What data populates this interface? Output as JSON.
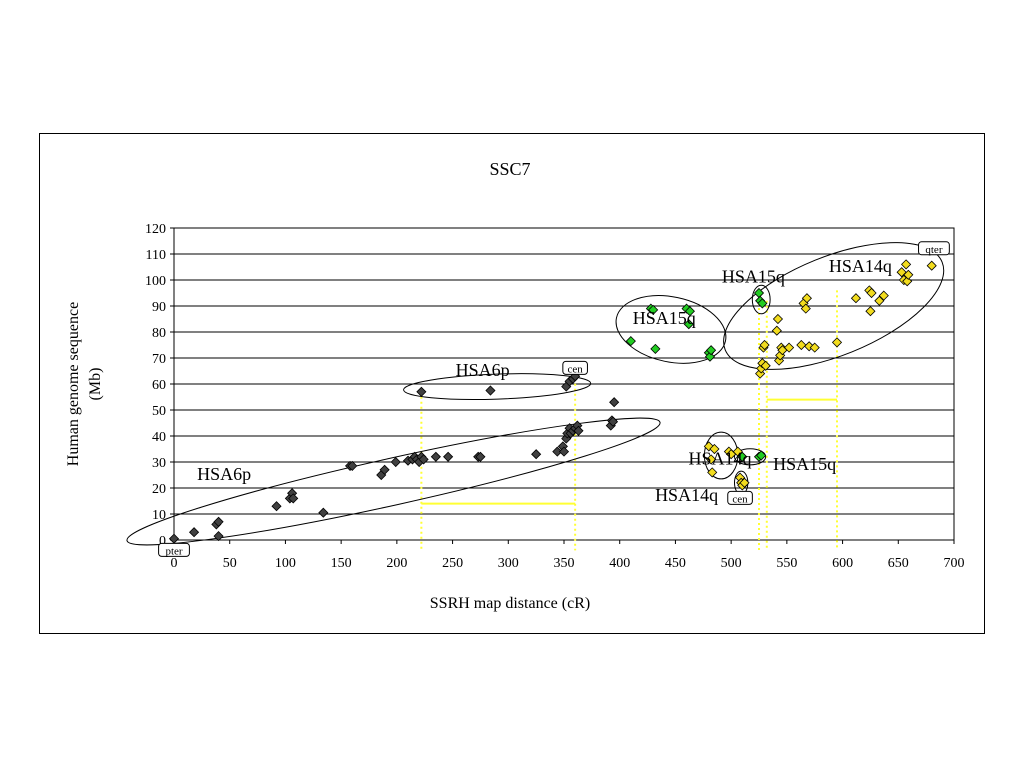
{
  "chart_data": {
    "type": "scatter",
    "title": "SSC7",
    "xlabel": "SSRH map distance (cR)",
    "ylabel": [
      "Human genome sequence",
      "(Mb)"
    ],
    "xlim": [
      0,
      700
    ],
    "ylim": [
      0,
      120
    ],
    "xticks": [
      0,
      50,
      100,
      150,
      200,
      250,
      300,
      350,
      400,
      450,
      500,
      550,
      600,
      650,
      700
    ],
    "yticks": [
      0,
      10,
      20,
      30,
      40,
      50,
      60,
      70,
      80,
      90,
      100,
      110,
      120
    ],
    "grid": "horizontal",
    "colors": {
      "dark": "#404040",
      "green": "#22cc22",
      "yellow": "#f2dc1e",
      "guide": "#ffff33"
    },
    "series": [
      {
        "color": "dark",
        "points": [
          [
            0,
            0.5
          ],
          [
            18,
            3
          ],
          [
            38,
            6
          ],
          [
            40,
            7
          ],
          [
            40,
            1.5
          ],
          [
            92,
            13
          ],
          [
            104,
            16
          ],
          [
            106,
            18
          ],
          [
            107,
            16
          ],
          [
            134,
            10.5
          ],
          [
            158,
            28.5
          ],
          [
            160,
            28.5
          ],
          [
            186,
            25
          ],
          [
            189,
            27
          ],
          [
            199,
            30
          ],
          [
            210,
            30.5
          ],
          [
            214,
            31
          ],
          [
            216,
            32
          ],
          [
            218,
            31
          ],
          [
            220,
            30
          ],
          [
            222,
            32
          ],
          [
            224,
            31
          ],
          [
            235,
            32
          ],
          [
            246,
            32
          ],
          [
            273,
            32
          ],
          [
            275,
            32
          ],
          [
            325,
            33
          ],
          [
            344,
            34
          ],
          [
            349,
            36
          ],
          [
            350,
            34
          ],
          [
            352,
            39
          ],
          [
            353,
            41
          ],
          [
            355,
            43
          ],
          [
            356,
            41
          ],
          [
            358,
            42
          ],
          [
            360,
            43
          ],
          [
            362,
            44
          ],
          [
            363,
            42
          ],
          [
            392,
            44
          ],
          [
            393,
            46
          ],
          [
            394,
            45.5
          ],
          [
            395,
            53
          ],
          [
            222,
            57
          ],
          [
            284,
            57.5
          ],
          [
            352,
            59
          ],
          [
            355,
            61
          ],
          [
            358,
            62
          ],
          [
            360,
            63
          ]
        ]
      },
      {
        "color": "green",
        "points": [
          [
            410,
            76.5
          ],
          [
            428,
            89
          ],
          [
            430,
            88.5
          ],
          [
            432,
            73.5
          ],
          [
            460,
            89
          ],
          [
            462,
            83
          ],
          [
            463,
            88
          ],
          [
            480,
            72
          ],
          [
            481,
            70.5
          ],
          [
            482,
            73
          ],
          [
            525,
            95
          ],
          [
            526,
            92
          ],
          [
            528,
            91
          ],
          [
            510,
            32
          ],
          [
            525,
            32
          ],
          [
            527,
            32.5
          ]
        ]
      },
      {
        "color": "yellow",
        "points": [
          [
            480,
            36
          ],
          [
            482,
            31
          ],
          [
            483,
            26
          ],
          [
            485,
            35
          ],
          [
            498,
            34
          ],
          [
            500,
            33
          ],
          [
            506,
            34
          ],
          [
            508,
            24
          ],
          [
            509,
            22
          ],
          [
            510,
            21
          ],
          [
            512,
            22
          ],
          [
            526,
            64
          ],
          [
            527,
            66
          ],
          [
            528,
            68
          ],
          [
            529,
            74
          ],
          [
            530,
            75
          ],
          [
            531,
            67
          ],
          [
            541,
            80.5
          ],
          [
            542,
            85
          ],
          [
            543,
            69
          ],
          [
            544,
            71
          ],
          [
            545,
            74
          ],
          [
            546,
            73
          ],
          [
            552,
            74
          ],
          [
            563,
            75
          ],
          [
            565,
            91
          ],
          [
            567,
            89
          ],
          [
            568,
            93
          ],
          [
            570,
            74.5
          ],
          [
            575,
            74
          ],
          [
            595,
            76
          ],
          [
            612,
            93
          ],
          [
            624,
            96
          ],
          [
            625,
            88
          ],
          [
            626,
            95
          ],
          [
            633,
            92
          ],
          [
            637,
            94
          ],
          [
            653,
            103
          ],
          [
            655,
            100
          ],
          [
            657,
            106
          ],
          [
            658,
            99.5
          ],
          [
            659,
            102
          ],
          [
            680,
            105.5
          ]
        ]
      }
    ],
    "annotations": [
      {
        "text": "HSA6p",
        "x": 45,
        "y": 23
      },
      {
        "text": "HSA6p",
        "x": 277,
        "y": 63
      },
      {
        "text": "HSA15q",
        "x": 440,
        "y": 83
      },
      {
        "text": "HSA15q",
        "x": 520,
        "y": 99
      },
      {
        "text": "HSA14q",
        "x": 616,
        "y": 103
      },
      {
        "text": "HSA14q",
        "x": 490,
        "y": 29
      },
      {
        "text": "HSA15q",
        "x": 566,
        "y": 27
      },
      {
        "text": "HSA14q",
        "x": 460,
        "y": 15
      }
    ],
    "boxed_labels": [
      {
        "text": "pter",
        "x": 0,
        "y": -4
      },
      {
        "text": "cen",
        "x": 360,
        "y": 66
      },
      {
        "text": "qter",
        "x": 682,
        "y": 112
      },
      {
        "text": "cen",
        "x": 508,
        "y": 16
      }
    ]
  }
}
